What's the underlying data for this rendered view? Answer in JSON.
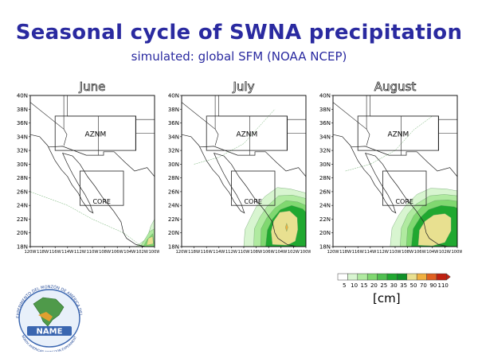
{
  "title": "Seasonal cycle of SWNA precipitation",
  "subtitle": "simulated: global SFM (NOAA NCEP)",
  "panels": [
    {
      "month": "June",
      "max_contour_cm": 50
    },
    {
      "month": "July",
      "max_contour_cm": 70
    },
    {
      "month": "August",
      "max_contour_cm": 50
    }
  ],
  "regions": {
    "aznm": "AZNM",
    "core": "CORE"
  },
  "lat_ticks": [
    "40N",
    "38N",
    "36N",
    "34N",
    "32N",
    "30N",
    "28N",
    "26N",
    "24N",
    "22N",
    "20N",
    "18N"
  ],
  "lon_ticks": [
    "120W",
    "118W",
    "116W",
    "114W",
    "112W",
    "110W",
    "108W",
    "106W",
    "104W",
    "102W",
    "100W"
  ],
  "colorbar": {
    "levels": [
      "5",
      "10",
      "15",
      "20",
      "25",
      "30",
      "35",
      "50",
      "70",
      "90",
      "110"
    ],
    "colors": [
      "#ffffff",
      "#d8f5d0",
      "#b0eaa0",
      "#80d870",
      "#50c050",
      "#20a830",
      "#109028",
      "#e8e090",
      "#f0b040",
      "#e06020",
      "#c02010"
    ],
    "unit": "[cm]"
  },
  "logo": {
    "top_text": "EXPERIMENTO DEL MONZÓN DE AMÉRICA DEL NORTE",
    "name": "NAME",
    "sub_text": "NORTH AMERICAN MONSOON EXPERIMENT"
  }
}
